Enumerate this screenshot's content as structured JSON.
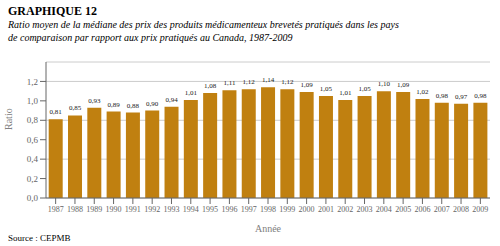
{
  "chart_data": {
    "type": "bar",
    "title": "GRAPHIQUE 12",
    "subtitle": [
      "Ratio moyen de la médiane des prix des produits médicamenteux brevetés pratiqués dans les pays",
      "de comparaison par rapport aux prix pratiqués au Canada, 1987-2009"
    ],
    "x_label": "Année",
    "y_label": "Ratio",
    "annotations": [
      "Source : CEPMB"
    ],
    "categories": [
      "1987",
      "1988",
      "1989",
      "1990",
      "1991",
      "1992",
      "1993",
      "1994",
      "1995",
      "1996",
      "1997",
      "1998",
      "1999",
      "2000",
      "2001",
      "2002",
      "2003",
      "2004",
      "2005",
      "2006",
      "2007",
      "2008",
      "2009"
    ],
    "values": [
      0.81,
      0.85,
      0.93,
      0.89,
      0.88,
      0.9,
      0.94,
      1.01,
      1.08,
      1.11,
      1.12,
      1.14,
      1.12,
      1.09,
      1.05,
      1.01,
      1.05,
      1.1,
      1.09,
      1.02,
      0.98,
      0.97,
      0.98
    ],
    "value_labels": [
      "0,81",
      "0,85",
      "0,93",
      "0,89",
      "0,88",
      "0,90",
      "0,94",
      "1,01",
      "1,08",
      "1,11",
      "1,12",
      "1,14",
      "1,12",
      "1,09",
      "1,05",
      "1,01",
      "1,05",
      "1,10",
      "1,09",
      "1,02",
      "0,98",
      "0,97",
      "0,98"
    ],
    "data_labels": true,
    "color": "#C08010",
    "ylim": [
      0,
      1.4
    ],
    "yticks": [
      {
        "value": 0.0,
        "label": "0,0"
      },
      {
        "value": 0.2,
        "label": "0,2"
      },
      {
        "value": 0.4,
        "label": "0,4"
      },
      {
        "value": 0.6,
        "label": "0,6"
      },
      {
        "value": 0.8,
        "label": "0,8"
      },
      {
        "value": 1.0,
        "label": "1,0"
      },
      {
        "value": 1.2,
        "label": "1,2"
      }
    ],
    "grid": true
  }
}
